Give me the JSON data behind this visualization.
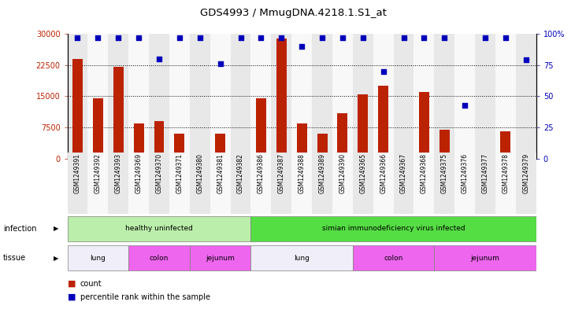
{
  "title": "GDS4993 / MmugDNA.4218.1.S1_at",
  "samples": [
    "GSM1249391",
    "GSM1249392",
    "GSM1249393",
    "GSM1249369",
    "GSM1249370",
    "GSM1249371",
    "GSM1249380",
    "GSM1249381",
    "GSM1249382",
    "GSM1249386",
    "GSM1249387",
    "GSM1249388",
    "GSM1249389",
    "GSM1249390",
    "GSM1249365",
    "GSM1249366",
    "GSM1249367",
    "GSM1249368",
    "GSM1249375",
    "GSM1249376",
    "GSM1249377",
    "GSM1249378",
    "GSM1249379"
  ],
  "counts": [
    24000,
    14500,
    22000,
    8500,
    9000,
    6000,
    1500,
    6000,
    200,
    14500,
    29000,
    8500,
    6000,
    11000,
    15500,
    17500,
    700,
    16000,
    7000,
    1500,
    300,
    6500,
    700
  ],
  "percentiles": [
    97,
    97,
    97,
    97,
    80,
    97,
    97,
    76,
    97,
    97,
    97,
    90,
    97,
    97,
    97,
    70,
    97,
    97,
    97,
    43,
    97,
    97,
    79
  ],
  "ylim_left": [
    0,
    30000
  ],
  "ylim_right": [
    0,
    100
  ],
  "yticks_left": [
    0,
    7500,
    15000,
    22500,
    30000
  ],
  "ytick_labels_left": [
    "0",
    "7500",
    "15000",
    "22500",
    "30000"
  ],
  "yticks_right": [
    0,
    25,
    50,
    75,
    100
  ],
  "ytick_labels_right": [
    "0",
    "25",
    "50",
    "75",
    "100%"
  ],
  "bar_color": "#bb2200",
  "dot_color": "#0000bb",
  "infection_groups": [
    {
      "label": "healthy uninfected",
      "start": 0,
      "end": 9,
      "color": "#bbeeaa"
    },
    {
      "label": "simian immunodeficiency virus infected",
      "start": 9,
      "end": 23,
      "color": "#55dd44"
    }
  ],
  "tissue_groups": [
    {
      "label": "lung",
      "start": 0,
      "end": 3,
      "color": "#f0eef8"
    },
    {
      "label": "colon",
      "start": 3,
      "end": 6,
      "color": "#ee66ee"
    },
    {
      "label": "jejunum",
      "start": 6,
      "end": 9,
      "color": "#ee66ee"
    },
    {
      "label": "lung",
      "start": 9,
      "end": 14,
      "color": "#f0eef8"
    },
    {
      "label": "colon",
      "start": 14,
      "end": 18,
      "color": "#ee66ee"
    },
    {
      "label": "jejunum",
      "start": 18,
      "end": 23,
      "color": "#ee66ee"
    }
  ],
  "col_bg_even": "#e8e8e8",
  "col_bg_odd": "#f8f8f8",
  "bar_color_left": "#bb2200",
  "axis_label_color_right": "#0000bb",
  "bg_color": "#ffffff"
}
